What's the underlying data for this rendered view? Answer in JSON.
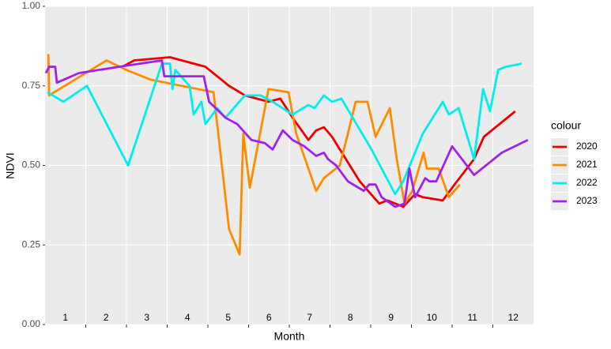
{
  "chart_data": {
    "type": "line",
    "x_label": "Month",
    "y_label": "NDVI",
    "legend_title": "colour",
    "xlim": [
      1,
      13
    ],
    "ylim": [
      0,
      1
    ],
    "xticks": [
      {
        "value": 1.5,
        "label": "1"
      },
      {
        "value": 2.5,
        "label": "2"
      },
      {
        "value": 3.5,
        "label": "3"
      },
      {
        "value": 4.5,
        "label": "4"
      },
      {
        "value": 5.5,
        "label": "5"
      },
      {
        "value": 6.5,
        "label": "6"
      },
      {
        "value": 7.5,
        "label": "7"
      },
      {
        "value": 8.5,
        "label": "8"
      },
      {
        "value": 9.5,
        "label": "9"
      },
      {
        "value": 10.5,
        "label": "10"
      },
      {
        "value": 11.5,
        "label": "11"
      },
      {
        "value": 12.5,
        "label": "12"
      }
    ],
    "x_gridlines": [
      2,
      3,
      4,
      5,
      6,
      7,
      8,
      9,
      10,
      11,
      12
    ],
    "yticks": [
      {
        "value": 0,
        "label": "0.00"
      },
      0.25,
      {
        "value": 0.5,
        "label": "0.50"
      },
      0.75,
      {
        "value": 1,
        "label": "1.00"
      }
    ],
    "grid": true,
    "series": [
      {
        "name": "2020",
        "color": "#ee0000",
        "x": [
          2.9,
          3.19,
          4.07,
          4.94,
          5.52,
          5.91,
          6.49,
          6.78,
          7.08,
          7.47,
          7.66,
          7.85,
          8.05,
          8.34,
          8.73,
          9.21,
          9.41,
          9.8,
          10.09,
          10.28,
          10.77,
          11.06,
          11.54,
          11.78,
          12.55
        ],
        "values": [
          0.81,
          0.83,
          0.84,
          0.81,
          0.75,
          0.72,
          0.7,
          0.71,
          0.65,
          0.58,
          0.61,
          0.62,
          0.59,
          0.53,
          0.45,
          0.38,
          0.39,
          0.37,
          0.41,
          0.4,
          0.39,
          0.44,
          0.52,
          0.59,
          0.67
        ]
      },
      {
        "name": "2021",
        "color": "#ff8c00",
        "x": [
          1.08,
          1.1,
          2.51,
          3.0,
          3.58,
          3.97,
          5.14,
          5.52,
          5.78,
          5.87,
          6.03,
          6.49,
          6.98,
          7.17,
          7.66,
          7.85,
          8.24,
          8.44,
          8.63,
          8.92,
          9.12,
          9.47,
          9.64,
          9.83,
          10.02,
          10.3,
          10.38,
          10.67,
          10.92,
          11.19
        ],
        "values": [
          0.85,
          0.72,
          0.83,
          0.8,
          0.77,
          0.76,
          0.73,
          0.3,
          0.22,
          0.6,
          0.43,
          0.74,
          0.73,
          0.6,
          0.42,
          0.46,
          0.5,
          0.6,
          0.7,
          0.7,
          0.59,
          0.68,
          0.52,
          0.38,
          0.42,
          0.54,
          0.49,
          0.49,
          0.4,
          0.44
        ]
      },
      {
        "name": "2022",
        "color": "#00eeee",
        "x": [
          1.06,
          1.45,
          2.03,
          3.04,
          3.87,
          4.07,
          4.13,
          4.2,
          4.55,
          4.65,
          4.84,
          4.94,
          5.23,
          5.43,
          5.91,
          6.3,
          6.59,
          7.08,
          7.47,
          7.62,
          7.85,
          8.05,
          8.28,
          9.02,
          9.6,
          9.8,
          10.28,
          10.77,
          10.92,
          11.16,
          11.54,
          11.76,
          11.93,
          12.13,
          12.32,
          12.71
        ],
        "values": [
          0.73,
          0.7,
          0.75,
          0.5,
          0.82,
          0.82,
          0.74,
          0.8,
          0.75,
          0.66,
          0.7,
          0.63,
          0.68,
          0.65,
          0.72,
          0.72,
          0.7,
          0.66,
          0.69,
          0.68,
          0.72,
          0.7,
          0.71,
          0.55,
          0.41,
          0.45,
          0.6,
          0.7,
          0.66,
          0.68,
          0.52,
          0.74,
          0.67,
          0.8,
          0.81,
          0.82
        ]
      },
      {
        "name": "2023",
        "color": "#a020f0",
        "x": [
          1.02,
          1.1,
          1.25,
          1.29,
          1.83,
          2.81,
          3.87,
          3.93,
          4.36,
          4.9,
          5.03,
          5.43,
          5.72,
          6.07,
          6.4,
          6.59,
          6.84,
          7.08,
          7.37,
          7.66,
          7.85,
          7.95,
          8.15,
          8.44,
          8.83,
          8.96,
          9.12,
          9.27,
          9.6,
          9.83,
          9.95,
          10.09,
          10.34,
          10.44,
          10.61,
          11.0,
          11.54,
          12.22,
          12.86
        ],
        "values": [
          0.79,
          0.81,
          0.81,
          0.76,
          0.79,
          0.81,
          0.83,
          0.78,
          0.78,
          0.78,
          0.7,
          0.65,
          0.63,
          0.58,
          0.57,
          0.55,
          0.61,
          0.58,
          0.56,
          0.53,
          0.54,
          0.52,
          0.5,
          0.45,
          0.42,
          0.44,
          0.44,
          0.4,
          0.37,
          0.38,
          0.49,
          0.4,
          0.46,
          0.45,
          0.45,
          0.56,
          0.47,
          0.54,
          0.58
        ]
      }
    ]
  }
}
